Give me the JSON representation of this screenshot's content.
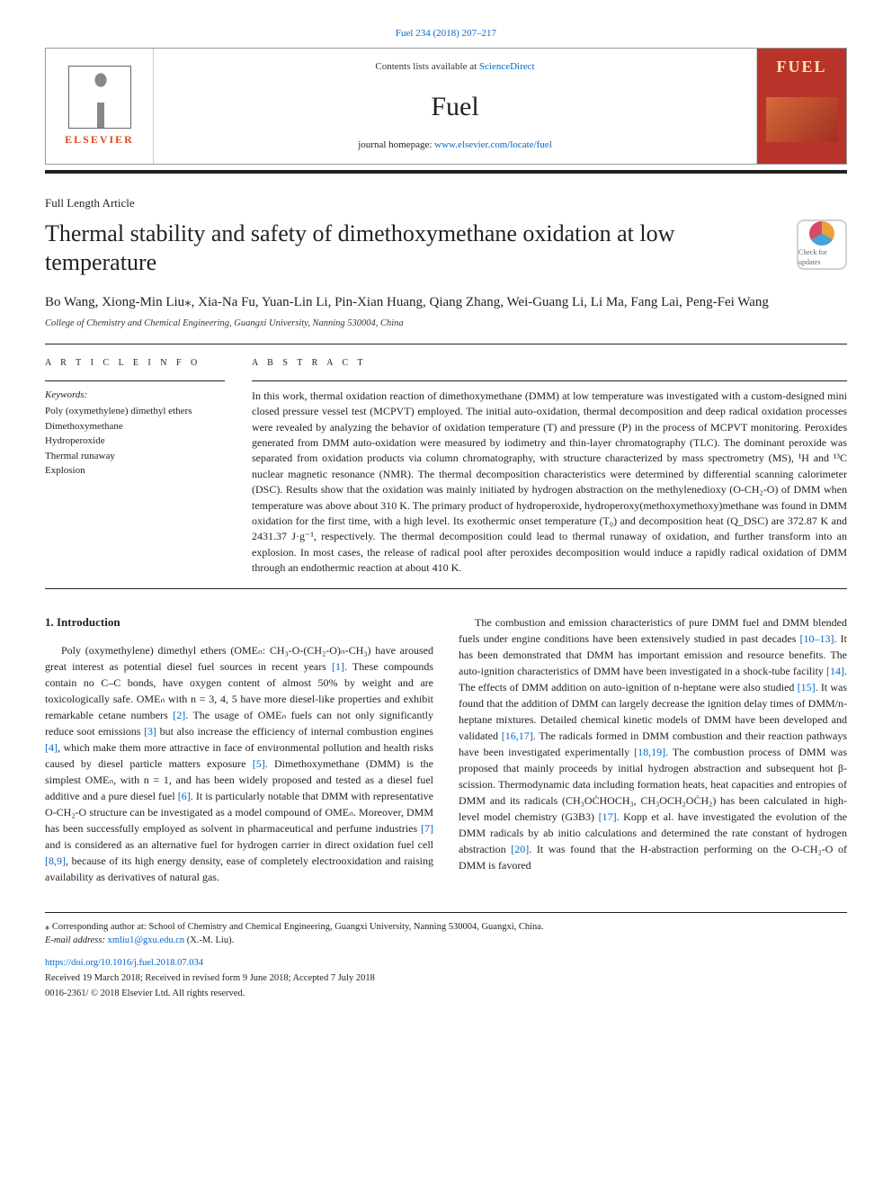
{
  "journal_ref": "Fuel 234 (2018) 207–217",
  "header": {
    "contents_prefix": "Contents lists available at ",
    "contents_link": "ScienceDirect",
    "journal_name": "Fuel",
    "homepage_prefix": "journal homepage: ",
    "homepage_link": "www.elsevier.com/locate/fuel",
    "publisher_name": "ELSEVIER",
    "cover_label": "FUEL"
  },
  "article_type": "Full Length Article",
  "title": "Thermal stability and safety of dimethoxymethane oxidation at low temperature",
  "updates_badge": "Check for updates",
  "authors": "Bo Wang, Xiong-Min Liu⁎, Xia-Na Fu, Yuan-Lin Li, Pin-Xian Huang, Qiang Zhang, Wei-Guang Li, Li Ma, Fang Lai, Peng-Fei Wang",
  "affiliation": "College of Chemistry and Chemical Engineering, Guangxi University, Nanning 530004, China",
  "info_head": "A R T I C L E  I N F O",
  "abs_head": "A B S T R A C T",
  "keywords_label": "Keywords:",
  "keywords": [
    "Poly (oxymethylene) dimethyl ethers",
    "Dimethoxymethane",
    "Hydroperoxide",
    "Thermal runaway",
    "Explosion"
  ],
  "abstract": "In this work, thermal oxidation reaction of dimethoxymethane (DMM) at low temperature was investigated with a custom-designed mini closed pressure vessel test (MCPVT) employed. The initial auto-oxidation, thermal decomposition and deep radical oxidation processes were revealed by analyzing the behavior of oxidation temperature (T) and pressure (P) in the process of MCPVT monitoring. Peroxides generated from DMM auto-oxidation were measured by iodimetry and thin-layer chromatography (TLC). The dominant peroxide was separated from oxidation products via column chromatography, with structure characterized by mass spectrometry (MS), ¹H and ¹³C nuclear magnetic resonance (NMR). The thermal decomposition characteristics were determined by differential scanning calorimeter (DSC). Results show that the oxidation was mainly initiated by hydrogen abstraction on the methylenedioxy (O-CH₂-O) of DMM when temperature was above about 310 K. The primary product of hydroperoxide, hydroperoxy(methoxymethoxy)methane was found in DMM oxidation for the first time, with a high level. Its exothermic onset temperature (T₀) and decomposition heat (Q_DSC) are 372.87 K and 2431.37 J·g⁻¹, respectively. The thermal decomposition could lead to thermal runaway of oxidation, and further transform into an explosion. In most cases, the release of radical pool after peroxides decomposition would induce a rapidly radical oxidation of DMM through an endothermic reaction at about 410 K.",
  "intro_head": "1. Introduction",
  "intro_paragraphs": [
    "Poly (oxymethylene) dimethyl ethers (OMEₙ: CH₃-O-(CH₂-O)ₙ-CH₃) have aroused great interest as potential diesel fuel sources in recent years [1]. These compounds contain no C–C bonds, have oxygen content of almost 50% by weight and are toxicologically safe. OMEₙ with n = 3, 4, 5 have more diesel-like properties and exhibit remarkable cetane numbers [2]. The usage of OMEₙ fuels can not only significantly reduce soot emissions [3] but also increase the efficiency of internal combustion engines [4], which make them more attractive in face of environmental pollution and health risks caused by diesel particle matters exposure [5]. Dimethoxymethane (DMM) is the simplest OMEₙ, with n = 1, and has been widely proposed and tested as a diesel fuel additive and a pure diesel fuel [6]. It is particularly notable that DMM with representative O-CH₂-O structure can be investigated as a model compound of OMEₙ. Moreover, DMM has been successfully employed as solvent in pharmaceutical and perfume industries [7] and is considered as an alternative fuel for hydrogen carrier in direct oxidation fuel cell [8,9], because of its high energy density, ease of completely electrooxidation and raising availability as derivatives of natural gas.",
    "The combustion and emission characteristics of pure DMM fuel and DMM blended fuels under engine conditions have been extensively studied in past decades [10–13]. It has been demonstrated that DMM has important emission and resource benefits. The auto-ignition characteristics of DMM have been investigated in a shock-tube facility [14]. The effects of DMM addition on auto-ignition of n-heptane were also studied [15]. It was found that the addition of DMM can largely decrease the ignition delay times of DMM/n-heptane mixtures. Detailed chemical kinetic models of DMM have been developed and validated [16,17]. The radicals formed in DMM combustion and their reaction pathways have been investigated experimentally [18,19]. The combustion process of DMM was proposed that mainly proceeds by initial hydrogen abstraction and subsequent hot β-scission. Thermodynamic data including formation heats, heat capacities and entropies of DMM and its radicals (CH₃OĊHOCH₃, CH₃OCH₂OĊH₂) has been calculated in high-level model chemistry (G3B3) [17]. Kopp et al. have investigated the evolution of the DMM radicals by ab initio calculations and determined the rate constant of hydrogen abstraction [20]. It was found that the H-abstraction performing on the O-CH₂-O of DMM is favored"
  ],
  "footnote": {
    "corresponding": "⁎ Corresponding author at: School of Chemistry and Chemical Engineering, Guangxi University, Nanning 530004, Guangxi, China.",
    "email_label": "E-mail address: ",
    "email": "xmliu1@gxu.edu.cn",
    "email_suffix": " (X.-M. Liu)."
  },
  "doi": "https://doi.org/10.1016/j.fuel.2018.07.034",
  "received": "Received 19 March 2018; Received in revised form 9 June 2018; Accepted 7 July 2018",
  "copyright": "0016-2361/ © 2018 Elsevier Ltd. All rights reserved.",
  "colors": {
    "link": "#0066cc",
    "elsevier": "#d84a1b",
    "cover_bg": "#b8342a",
    "rule": "#222222"
  }
}
